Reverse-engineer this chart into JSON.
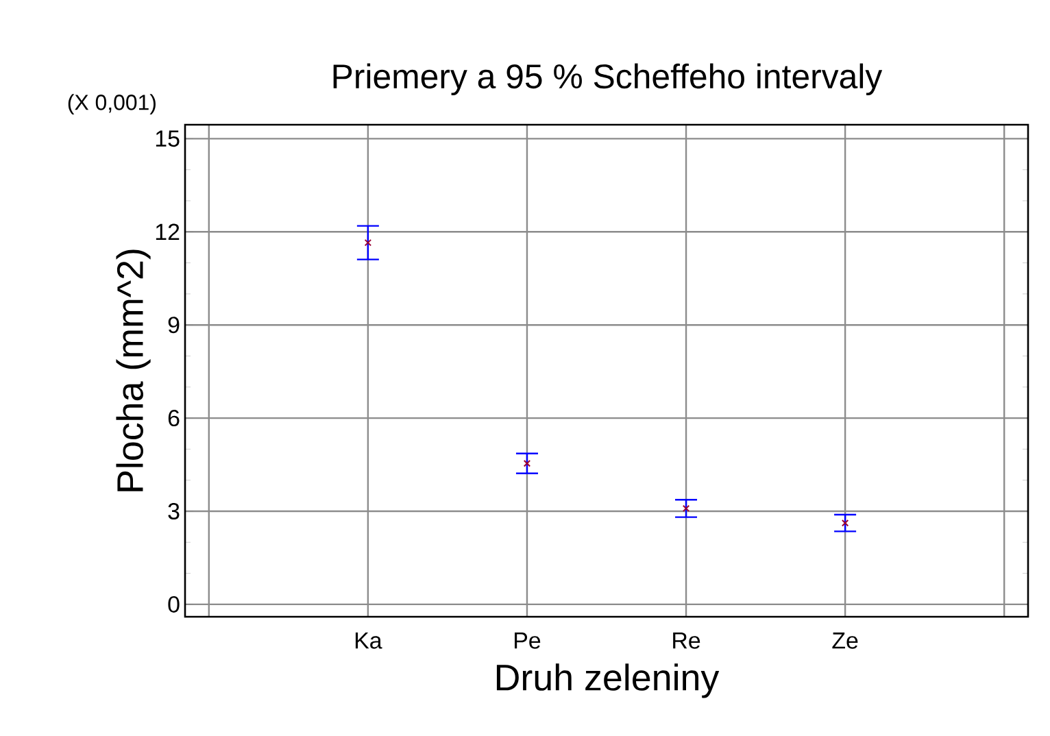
{
  "chart_data": {
    "type": "scatter",
    "title": "Priemery a 95 % Scheffeho intervaly",
    "xlabel": "Druh zeleniny",
    "ylabel": "Plocha (mm^2)",
    "annotations": [
      "(X 0,001)"
    ],
    "categories": [
      null,
      "Ka",
      "Pe",
      "Re",
      "Ze",
      null
    ],
    "series": [
      {
        "color": "#990033",
        "values": [
          null,
          11.65,
          4.54,
          3.09,
          2.62,
          null
        ],
        "errors": [
          null,
          0.54,
          0.32,
          0.28,
          0.27,
          null
        ]
      }
    ],
    "ylim": [
      -0.4,
      15.45
    ],
    "yticks": [
      0,
      3,
      6,
      9,
      12,
      15
    ],
    "grid": true,
    "marker": "cross"
  }
}
